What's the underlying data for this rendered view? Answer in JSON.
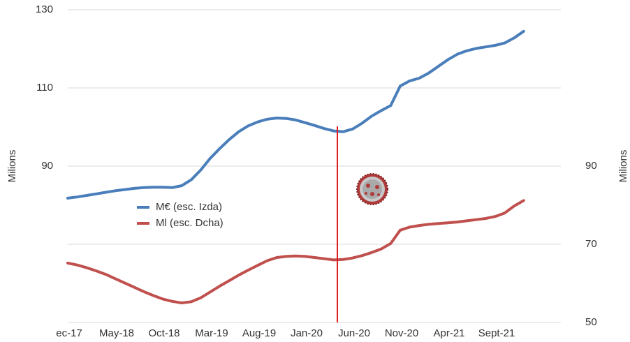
{
  "chart_data": {
    "type": "line",
    "categories": [
      "ec-17",
      null,
      null,
      null,
      null,
      "May-18",
      null,
      null,
      null,
      null,
      "Oct-18",
      null,
      null,
      null,
      null,
      "Mar-19",
      null,
      null,
      null,
      null,
      "Aug-19",
      null,
      null,
      null,
      null,
      "Jan-20",
      null,
      null,
      null,
      null,
      "Jun-20",
      null,
      null,
      null,
      null,
      "Nov-20",
      null,
      null,
      null,
      null,
      "Apr-21",
      null,
      null,
      null,
      null,
      "Sept-21",
      null,
      null,
      null
    ],
    "series": [
      {
        "name": "M€ (esc. Izda)",
        "color": "#4a7ebb",
        "values": [
          81.8,
          82.1,
          82.5,
          82.9,
          83.3,
          83.7,
          84.0,
          84.3,
          84.5,
          84.6,
          84.6,
          84.5,
          85.0,
          86.5,
          89.0,
          92.0,
          94.5,
          96.8,
          98.8,
          100.3,
          101.3,
          102.0,
          102.3,
          102.2,
          101.8,
          101.1,
          100.4,
          99.6,
          99.0,
          98.8,
          99.5,
          101.0,
          102.8,
          104.2,
          105.5,
          110.5,
          111.8,
          112.5,
          113.8,
          115.5,
          117.2,
          118.6,
          119.5,
          120.1,
          120.5,
          120.9,
          121.5,
          122.8,
          124.5
        ]
      },
      {
        "name": "Ml (esc. Dcha)",
        "color": "#c0504d",
        "axis": "y2",
        "values": [
          65.2,
          64.7,
          64.0,
          63.2,
          62.3,
          61.2,
          60.1,
          59.0,
          57.9,
          56.9,
          56.0,
          55.4,
          55.0,
          55.3,
          56.3,
          57.8,
          59.3,
          60.7,
          62.1,
          63.4,
          64.6,
          65.8,
          66.6,
          66.9,
          67.0,
          66.9,
          66.6,
          66.3,
          66.0,
          66.1,
          66.5,
          67.1,
          67.9,
          68.8,
          70.2,
          73.6,
          74.4,
          74.8,
          75.1,
          75.3,
          75.5,
          75.7,
          76.0,
          76.3,
          76.6,
          77.1,
          78.0,
          79.8,
          81.2
        ]
      }
    ],
    "y_label": "Milions",
    "y2_label": "Milions",
    "ylim": [
      50,
      130
    ],
    "yticks": [
      90,
      110,
      130
    ],
    "y2lim": [
      50,
      130
    ],
    "y2ticks": [
      50,
      70,
      90
    ],
    "grid": true
  }
}
